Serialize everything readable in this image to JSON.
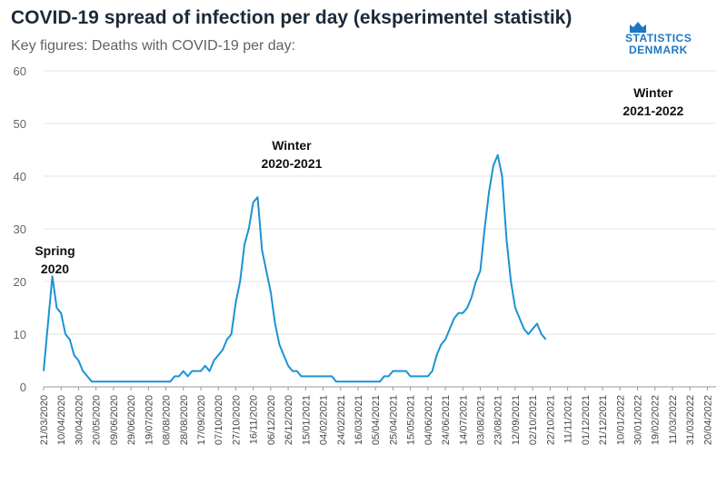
{
  "header": {
    "title": "COVID-19 spread of infection per day (eksperimentel statistik)",
    "subtitle": "Key figures: Deaths with COVID-19 per day:"
  },
  "logo": {
    "line1": "STATISTICS",
    "line2": "DENMARK",
    "color": "#1e77c5"
  },
  "chart_data": {
    "type": "line",
    "title": "COVID-19 spread of infection per day (eksperimentel statistik)",
    "subtitle": "Key figures: Deaths with COVID-19 per day:",
    "xlabel": "",
    "ylabel": "",
    "ylim": [
      0,
      60
    ],
    "yticks": [
      0,
      10,
      20,
      30,
      40,
      50,
      60
    ],
    "grid": true,
    "line_color": "#1a93d4",
    "x_start": "21/03/2020",
    "x_end": "30/04/2022",
    "xtick_labels": [
      "21/03/2020",
      "10/04/2020",
      "30/04/2020",
      "20/05/2020",
      "09/06/2020",
      "29/06/2020",
      "19/07/2020",
      "08/08/2020",
      "28/08/2020",
      "17/09/2020",
      "07/10/2020",
      "27/10/2020",
      "16/11/2020",
      "06/12/2020",
      "26/12/2020",
      "15/01/2021",
      "04/02/2021",
      "24/02/2021",
      "16/03/2021",
      "05/04/2021",
      "25/04/2021",
      "15/05/2021",
      "04/06/2021",
      "24/06/2021",
      "14/07/2021",
      "03/08/2021",
      "23/08/2021",
      "12/09/2021",
      "02/10/2021",
      "22/10/2021",
      "11/11/2021",
      "01/12/2021",
      "21/12/2021",
      "10/01/2022",
      "30/01/2022",
      "19/02/2022",
      "11/03/2022",
      "31/03/2022",
      "20/04/2022"
    ],
    "series": [
      {
        "name": "Deaths with COVID-19 per day",
        "day_step": 5,
        "values": [
          3,
          12,
          21,
          15,
          14,
          10,
          9,
          6,
          5,
          3,
          2,
          1,
          1,
          1,
          1,
          1,
          1,
          1,
          1,
          1,
          1,
          1,
          1,
          1,
          1,
          1,
          1,
          1,
          1,
          1,
          2,
          2,
          3,
          2,
          3,
          3,
          3,
          4,
          3,
          5,
          6,
          7,
          9,
          10,
          16,
          20,
          27,
          30,
          35,
          36,
          26,
          22,
          18,
          12,
          8,
          6,
          4,
          3,
          3,
          2,
          2,
          2,
          2,
          2,
          2,
          2,
          2,
          1,
          1,
          1,
          1,
          1,
          1,
          1,
          1,
          1,
          1,
          1,
          2,
          2,
          3,
          3,
          3,
          3,
          2,
          2,
          2,
          2,
          2,
          3,
          6,
          8,
          9,
          11,
          13,
          14,
          14,
          15,
          17,
          20,
          22,
          30,
          37,
          42,
          44,
          40,
          28,
          20,
          15,
          13,
          11,
          10,
          11,
          12,
          10,
          9
        ]
      }
    ],
    "annotations": [
      {
        "lines": [
          "Spring",
          "2020"
        ],
        "date": "03/04/2020",
        "value": 25
      },
      {
        "lines": [
          "Winter",
          "2020-2021"
        ],
        "date": "30/12/2020",
        "value": 45
      },
      {
        "lines": [
          "Winter",
          "2021-2022"
        ],
        "date": "17/02/2022",
        "value": 55
      }
    ]
  }
}
